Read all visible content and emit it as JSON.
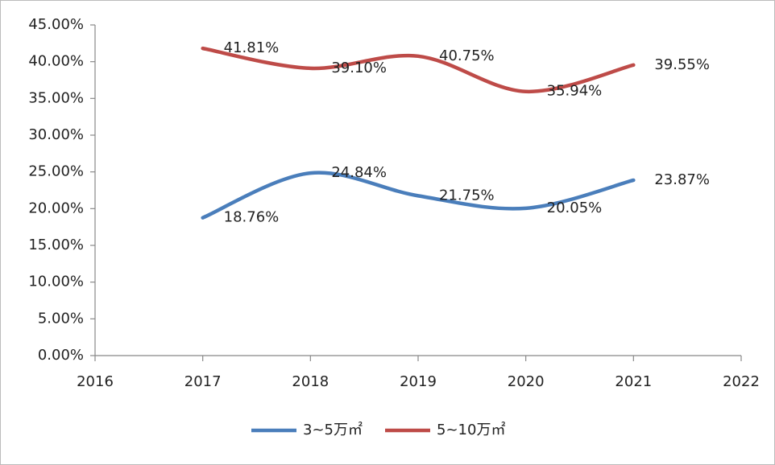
{
  "chart_data": {
    "type": "line",
    "x": [
      2017,
      2018,
      2019,
      2020,
      2021
    ],
    "series": [
      {
        "name": "3~5万㎡",
        "color": "#4a7ebb",
        "values": [
          18.76,
          24.84,
          21.75,
          20.05,
          23.87
        ],
        "value_labels": [
          "18.76%",
          "24.84%",
          "21.75%",
          "20.05%",
          "23.87%"
        ]
      },
      {
        "name": "5~10万㎡",
        "color": "#be4b48",
        "values": [
          41.81,
          39.1,
          40.75,
          35.94,
          39.55
        ],
        "value_labels": [
          "41.81%",
          "39.10%",
          "40.75%",
          "35.94%",
          "39.55%"
        ]
      }
    ],
    "xlim": [
      2016,
      2022
    ],
    "xticks": [
      2016,
      2017,
      2018,
      2019,
      2020,
      2021,
      2022
    ],
    "ylim": [
      0,
      45
    ],
    "yticks": [
      {
        "value": 0,
        "label": "0.00%"
      },
      {
        "value": 5,
        "label": "5.00%"
      },
      {
        "value": 10,
        "label": "10.00%"
      },
      {
        "value": 15,
        "label": "15.00%"
      },
      {
        "value": 20,
        "label": "20.00%"
      },
      {
        "value": 25,
        "label": "25.00%"
      },
      {
        "value": 30,
        "label": "30.00%"
      },
      {
        "value": 35,
        "label": "35.00%"
      },
      {
        "value": 40,
        "label": "40.00%"
      },
      {
        "value": 45,
        "label": "45.00%"
      }
    ],
    "smooth": true,
    "legend": "bottom"
  }
}
